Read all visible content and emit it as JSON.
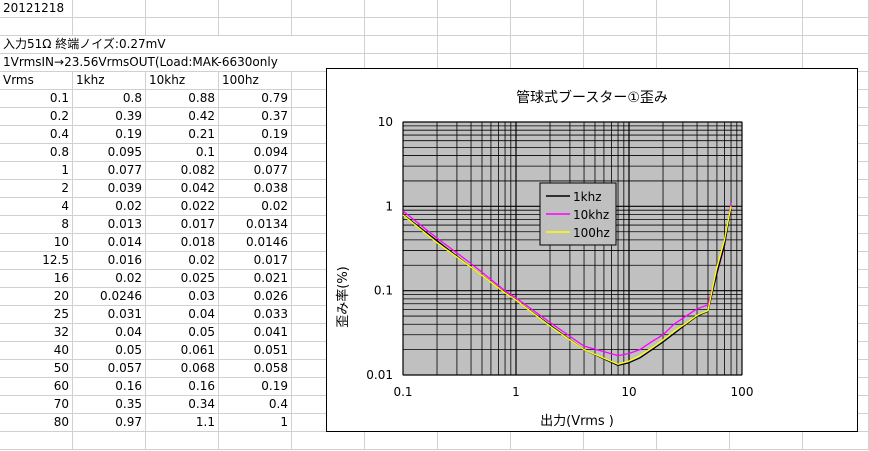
{
  "sheet": {
    "date": "20121218",
    "note1": "入力51Ω 終端ノイズ:0.27mV",
    "note2": "1VrmsIN→23.56VrmsOUT(Load:MAK-6630only",
    "headers": [
      "Vrms",
      "1khz",
      "10khz",
      "100hz"
    ],
    "rows": [
      [
        "0.1",
        "0.8",
        "0.88",
        "0.79"
      ],
      [
        "0.2",
        "0.39",
        "0.42",
        "0.37"
      ],
      [
        "0.4",
        "0.19",
        "0.21",
        "0.19"
      ],
      [
        "0.8",
        "0.095",
        "0.1",
        "0.094"
      ],
      [
        "1",
        "0.077",
        "0.082",
        "0.077"
      ],
      [
        "2",
        "0.039",
        "0.042",
        "0.038"
      ],
      [
        "4",
        "0.02",
        "0.022",
        "0.02"
      ],
      [
        "8",
        "0.013",
        "0.017",
        "0.0134"
      ],
      [
        "10",
        "0.014",
        "0.018",
        "0.0146"
      ],
      [
        "12.5",
        "0.016",
        "0.02",
        "0.017"
      ],
      [
        "16",
        "0.02",
        "0.025",
        "0.021"
      ],
      [
        "20",
        "0.0246",
        "0.03",
        "0.026"
      ],
      [
        "25",
        "0.031",
        "0.04",
        "0.033"
      ],
      [
        "32",
        "0.04",
        "0.05",
        "0.041"
      ],
      [
        "40",
        "0.05",
        "0.061",
        "0.051"
      ],
      [
        "50",
        "0.057",
        "0.068",
        "0.058"
      ],
      [
        "60",
        "0.16",
        "0.16",
        "0.19"
      ],
      [
        "70",
        "0.35",
        "0.34",
        "0.4"
      ],
      [
        "80",
        "0.97",
        "1.1",
        "1"
      ]
    ]
  },
  "chart_data": {
    "type": "line",
    "title": "管球式ブースター①歪み",
    "xlabel": "出力(Vrms )",
    "ylabel": "歪み率(%)",
    "xscale": "log",
    "yscale": "log",
    "xlim": [
      0.1,
      100
    ],
    "ylim": [
      0.01,
      10
    ],
    "grid": true,
    "legend_position": "center-left inside plot",
    "plot_background": "#c0c0c0",
    "x": [
      0.1,
      0.2,
      0.4,
      0.8,
      1,
      2,
      4,
      8,
      10,
      12.5,
      16,
      20,
      25,
      32,
      40,
      50,
      60,
      70,
      80
    ],
    "x_ticks": [
      "0.1",
      "1",
      "10",
      "100"
    ],
    "y_ticks": [
      "10",
      "1",
      "0.1",
      "0.01"
    ],
    "series": [
      {
        "name": "1khz",
        "color": "#000000",
        "values": [
          0.8,
          0.39,
          0.19,
          0.095,
          0.077,
          0.039,
          0.02,
          0.013,
          0.014,
          0.016,
          0.02,
          0.0246,
          0.031,
          0.04,
          0.05,
          0.057,
          0.16,
          0.35,
          0.97
        ]
      },
      {
        "name": "10khz",
        "color": "#ff00ff",
        "values": [
          0.88,
          0.42,
          0.21,
          0.1,
          0.082,
          0.042,
          0.022,
          0.017,
          0.018,
          0.02,
          0.025,
          0.03,
          0.04,
          0.05,
          0.061,
          0.068,
          0.16,
          0.34,
          1.1
        ]
      },
      {
        "name": "100hz",
        "color": "#ffff00",
        "values": [
          0.79,
          0.37,
          0.19,
          0.094,
          0.077,
          0.038,
          0.02,
          0.0134,
          0.0146,
          0.017,
          0.021,
          0.026,
          0.033,
          0.041,
          0.051,
          0.058,
          0.19,
          0.4,
          1
        ]
      }
    ]
  }
}
